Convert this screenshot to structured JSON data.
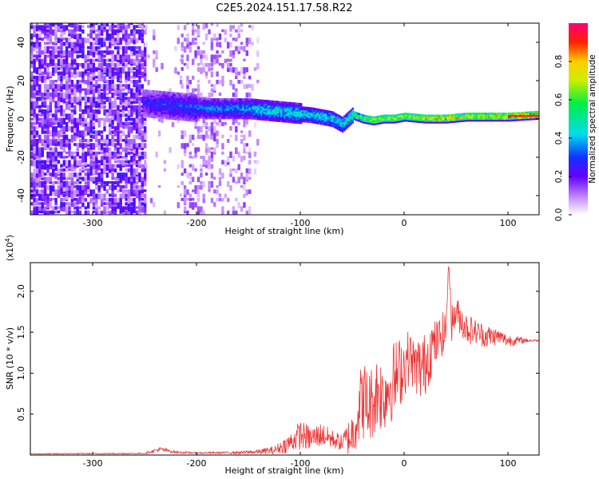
{
  "title": "C2E5.2024.151.17.58.R22",
  "chart_data": [
    {
      "type": "heatmap",
      "xlabel": "Height of straight line (km)",
      "ylabel": "Frequency (Hz)",
      "xlim": [
        -360,
        130
      ],
      "ylim": [
        -50,
        50
      ],
      "xticks": [
        -300,
        -200,
        -100,
        0,
        100
      ],
      "yticks": [
        -40,
        -20,
        0,
        20,
        40
      ],
      "colorbar": {
        "label": "Normalized spectral amplitude",
        "range": [
          0,
          1
        ],
        "ticks": [
          "0.0",
          "0.2",
          "0.4",
          "0.6",
          "0.8"
        ],
        "colormap": "white-purple-blue-cyan-green-yellow-red-magenta"
      },
      "ridge": {
        "description": "main spectral line",
        "x": [
          -250,
          -230,
          -210,
          -190,
          -170,
          -150,
          -130,
          -110,
          -90,
          -70,
          -60,
          -50,
          -40,
          -30,
          -20,
          -10,
          0,
          20,
          40,
          60,
          80,
          100,
          130
        ],
        "frequency": [
          8,
          7,
          6,
          5,
          5,
          5,
          4,
          3,
          2,
          0,
          -3,
          2,
          0,
          -1,
          0,
          0,
          1,
          0,
          0,
          1,
          1,
          1,
          2
        ],
        "amplitude": [
          0.25,
          0.3,
          0.3,
          0.35,
          0.35,
          0.4,
          0.45,
          0.45,
          0.45,
          0.45,
          0.45,
          0.55,
          0.65,
          0.7,
          0.7,
          0.75,
          0.7,
          0.75,
          0.8,
          0.75,
          0.75,
          0.8,
          0.85
        ]
      }
    },
    {
      "type": "line",
      "xlabel": "Height of straight line (km)",
      "ylabel": "SNR (10 * v/v)",
      "y_multiplier_label": "(x10",
      "y_multiplier_exp": "4",
      "y_multiplier_close": ")",
      "xlim": [
        -360,
        130
      ],
      "ylim": [
        0,
        23500
      ],
      "xticks": [
        -300,
        -200,
        -100,
        0,
        100
      ],
      "yticks": [
        {
          "value": 5000,
          "label": "0.5"
        },
        {
          "value": 10000,
          "label": "1.0"
        },
        {
          "value": 15000,
          "label": "1.5"
        },
        {
          "value": 20000,
          "label": "2.0"
        }
      ],
      "color": "#ee3333",
      "series": [
        {
          "x": [
            -360,
            -250,
            -235,
            -220,
            -200,
            -160,
            -140,
            -125,
            -110,
            -100,
            -90,
            -80,
            -70,
            -60,
            -50,
            -45,
            -40,
            -35,
            -30,
            -25,
            -20,
            -15,
            -10,
            -5,
            0,
            5,
            10,
            15,
            20,
            25,
            30,
            35,
            40,
            43,
            46,
            50,
            60,
            70,
            80,
            90,
            100,
            110,
            120,
            130
          ],
          "y": [
            150,
            200,
            700,
            350,
            250,
            300,
            400,
            600,
            1500,
            2500,
            2000,
            2500,
            2000,
            1500,
            2500,
            5000,
            7000,
            6000,
            6500,
            8000,
            7000,
            8500,
            9000,
            10000,
            11000,
            12000,
            11000,
            10500,
            11000,
            13000,
            13500,
            14500,
            15000,
            23500,
            16000,
            17500,
            15500,
            15000,
            14500,
            14500,
            14000,
            14000,
            14000,
            14000
          ],
          "spread": [
            50,
            80,
            300,
            150,
            100,
            150,
            300,
            500,
            1200,
            1800,
            1500,
            1500,
            1200,
            1000,
            3000,
            4000,
            5000,
            5000,
            4500,
            5000,
            4500,
            4500,
            5000,
            4500,
            4000,
            3500,
            3000,
            4500,
            4000,
            4000,
            3000,
            2500,
            3000,
            0,
            2500,
            2000,
            2000,
            1500,
            1500,
            1000,
            800,
            500,
            200,
            100
          ]
        }
      ]
    }
  ]
}
